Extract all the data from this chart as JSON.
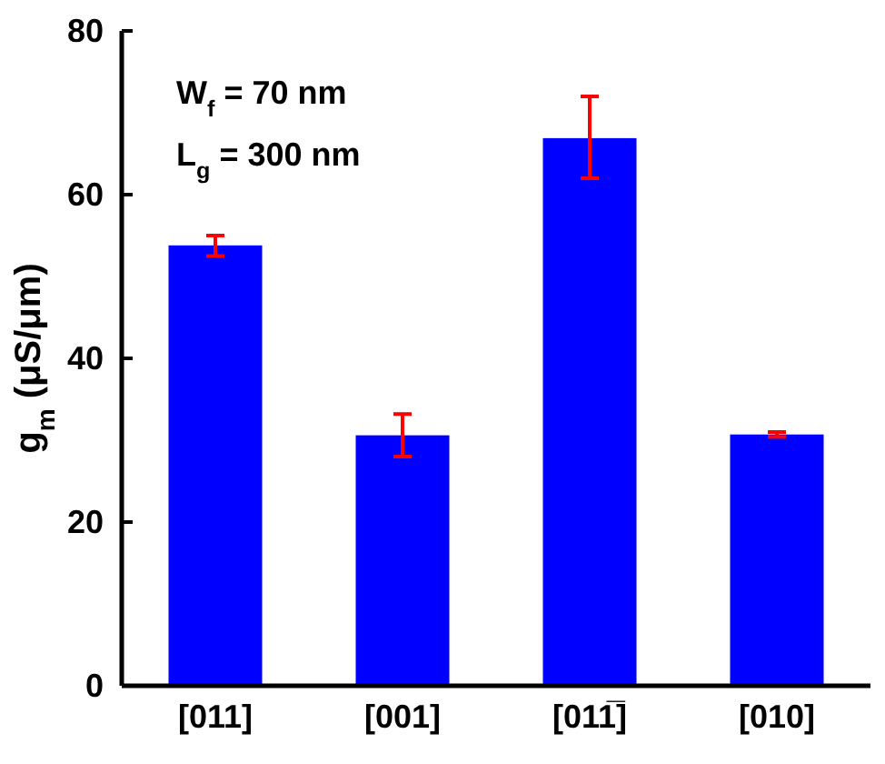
{
  "chart_data": {
    "type": "bar",
    "ylabel": "g$_{m}$ (μS/μm)",
    "categories": [
      "[011]",
      "[001]",
      "[011̅]",
      "[010]"
    ],
    "values": [
      53.8,
      30.6,
      66.9,
      30.7
    ],
    "color": "#0000ff",
    "errors": [
      [
        52.5,
        55
      ],
      [
        28,
        33.2
      ],
      [
        62,
        72
      ],
      [
        30.4,
        31
      ]
    ],
    "ylim": [
      0,
      80
    ],
    "yticks": [
      0,
      20,
      40,
      60,
      80
    ],
    "annotations": [
      "W$_{f}$ = 70 nm",
      "L$_{g}$ = 300 nm"
    ]
  }
}
